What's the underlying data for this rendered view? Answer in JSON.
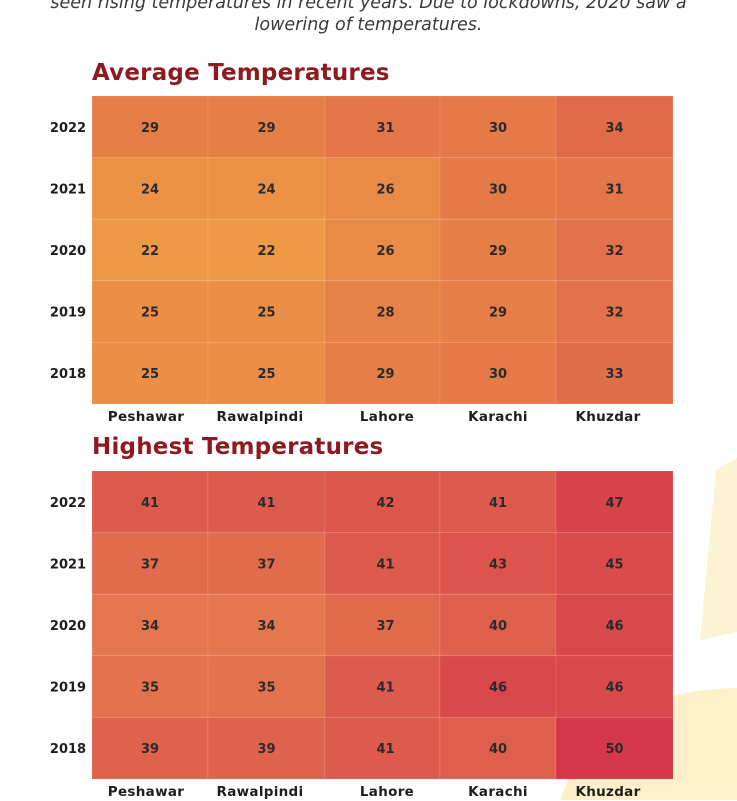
{
  "intro": {
    "line1": "seen rising temperatures in recent years. Due to lockdowns, 2020 saw a",
    "line2": "lowering of temperatures."
  },
  "chart_data": [
    {
      "type": "heatmap",
      "title": "Average Temperatures",
      "x": [
        "Peshawar",
        "Rawalpindi",
        "Lahore",
        "Karachi",
        "Khuzdar"
      ],
      "y": [
        "2022",
        "2021",
        "2020",
        "2019",
        "2018"
      ],
      "values": [
        [
          29,
          29,
          31,
          30,
          34
        ],
        [
          24,
          24,
          26,
          30,
          31
        ],
        [
          22,
          22,
          26,
          29,
          32
        ],
        [
          25,
          25,
          28,
          29,
          32
        ],
        [
          25,
          25,
          29,
          30,
          33
        ]
      ],
      "color_range": [
        "#ee9a44",
        "#e06a4a"
      ],
      "value_range": [
        22,
        34
      ]
    },
    {
      "type": "heatmap",
      "title": "Highest Temperatures",
      "x": [
        "Peshawar",
        "Rawalpindi",
        "Lahore",
        "Karachi",
        "Khuzdar"
      ],
      "y": [
        "2022",
        "2021",
        "2020",
        "2019",
        "2018"
      ],
      "values": [
        [
          41,
          41,
          42,
          41,
          47
        ],
        [
          37,
          37,
          41,
          43,
          45
        ],
        [
          34,
          34,
          37,
          40,
          46
        ],
        [
          35,
          35,
          41,
          46,
          46
        ],
        [
          39,
          39,
          41,
          40,
          50
        ]
      ],
      "color_range": [
        "#e4774d",
        "#d5384a"
      ],
      "value_range": [
        34,
        50
      ]
    }
  ]
}
